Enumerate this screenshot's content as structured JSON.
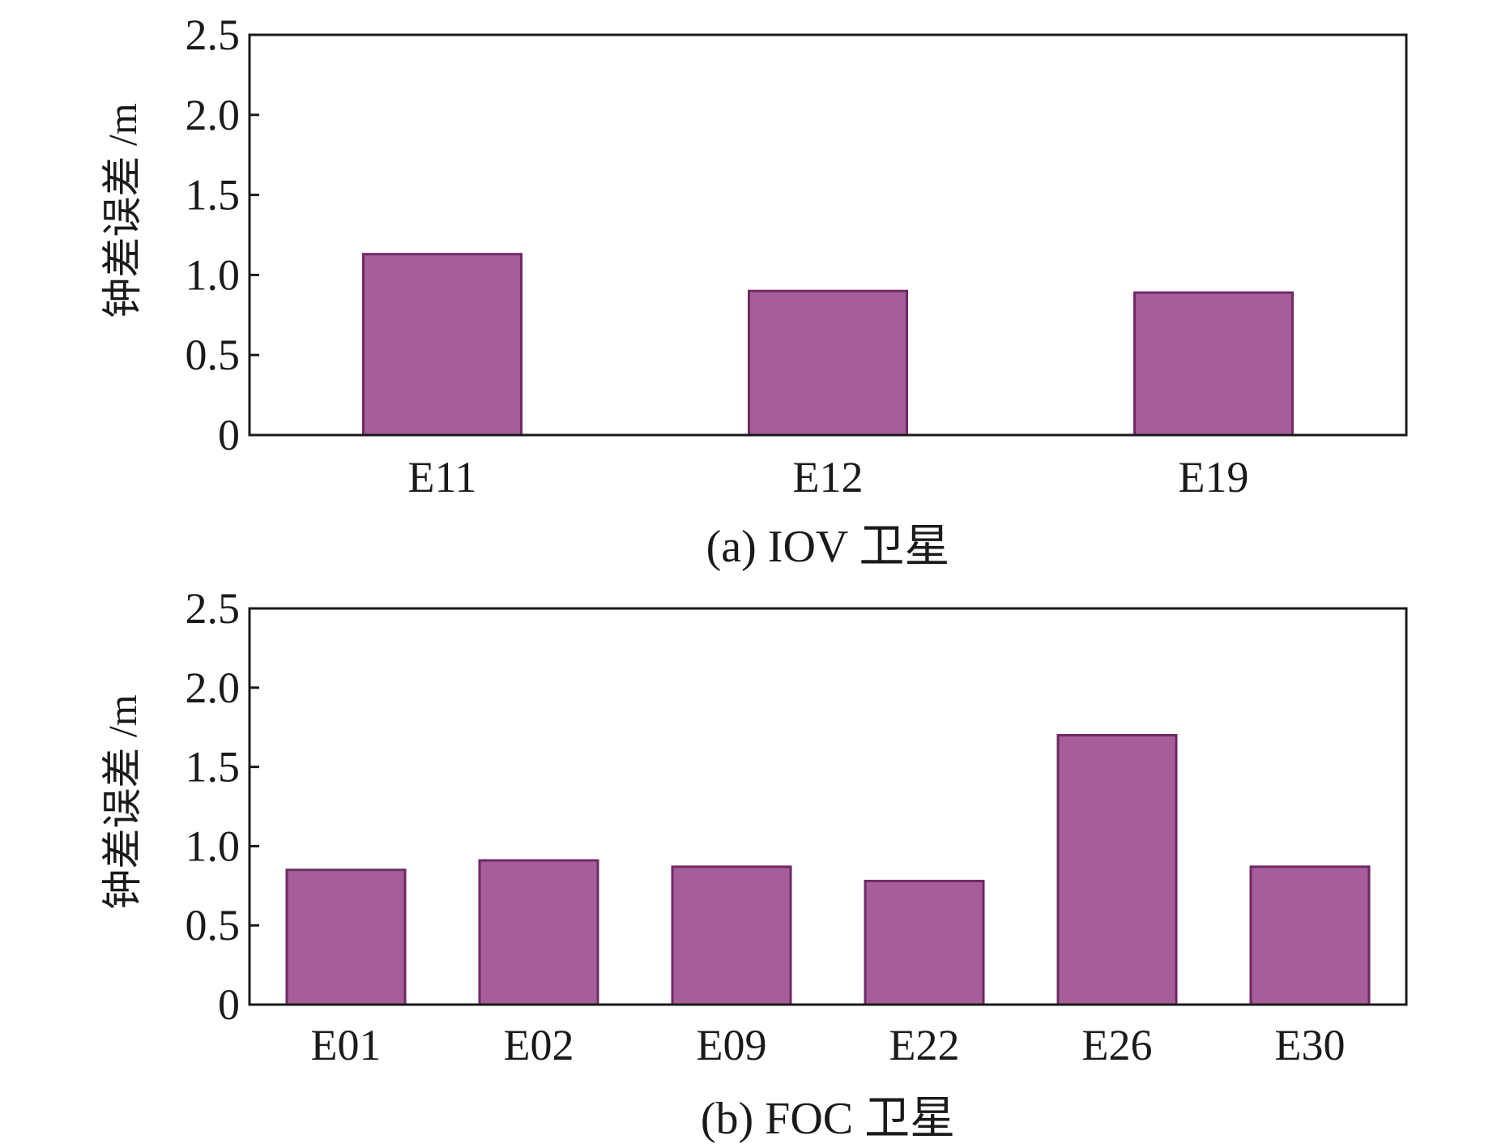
{
  "chart_data": [
    {
      "type": "bar",
      "caption": "(a) IOV 卫星",
      "ylabel": "钟差误差 /m",
      "ylim": [
        0,
        2.5
      ],
      "yticks": [
        "0",
        "0.5",
        "1.0",
        "1.5",
        "2.0",
        "2.5"
      ],
      "categories": [
        "E11",
        "E12",
        "E19"
      ],
      "values": [
        1.13,
        0.9,
        0.89
      ],
      "bar_color": "#a65e9b",
      "bar_edge_color": "#6e2a66",
      "grid": false,
      "legend": "none"
    },
    {
      "type": "bar",
      "caption": "(b) FOC 卫星",
      "ylabel": "钟差误差 /m",
      "ylim": [
        0,
        2.5
      ],
      "yticks": [
        "0",
        "0.5",
        "1.0",
        "1.5",
        "2.0",
        "2.5"
      ],
      "categories": [
        "E01",
        "E02",
        "E09",
        "E22",
        "E26",
        "E30"
      ],
      "values": [
        0.85,
        0.91,
        0.87,
        0.78,
        1.7,
        0.87
      ],
      "bar_color": "#a65e9b",
      "bar_edge_color": "#6e2a66",
      "grid": false,
      "legend": "none"
    }
  ]
}
